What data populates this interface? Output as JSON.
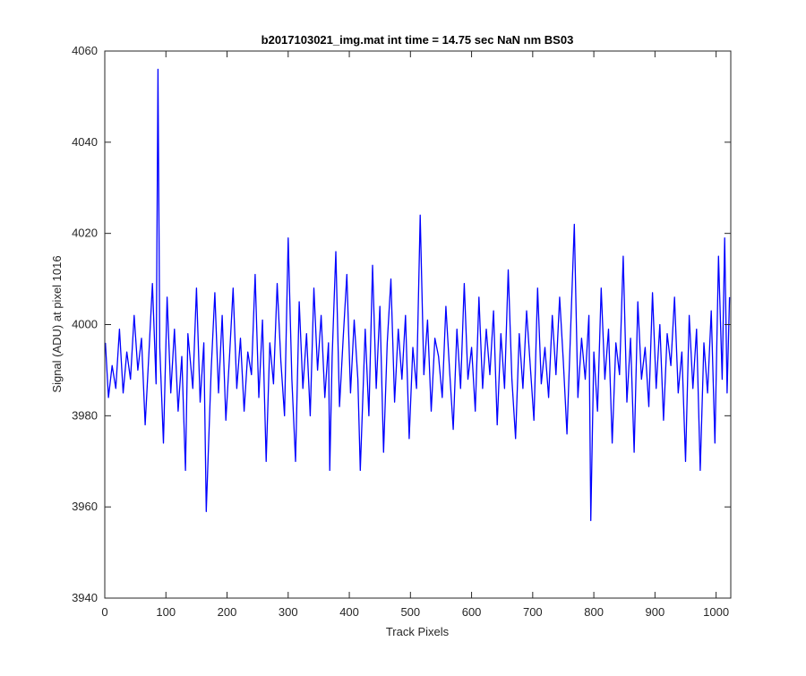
{
  "chart_data": {
    "type": "line",
    "title": "b2017103021_img.mat int time = 14.75 sec  NaN nm BS03",
    "xlabel": "Track Pixels",
    "ylabel": "Signal (ADU) at pixel 1016",
    "xlim": [
      0,
      1024
    ],
    "ylim": [
      3940,
      4060
    ],
    "xticks": [
      0,
      100,
      200,
      300,
      400,
      500,
      600,
      700,
      800,
      900,
      1000
    ],
    "yticks": [
      3940,
      3960,
      3980,
      4000,
      4020,
      4040,
      4060
    ],
    "grid": false,
    "legend": "none",
    "series": [
      {
        "color": "#0000ff",
        "x": [
          1,
          6,
          12,
          18,
          24,
          30,
          36,
          42,
          48,
          54,
          60,
          66,
          72,
          78,
          84,
          87,
          90,
          96,
          102,
          108,
          114,
          120,
          126,
          132,
          136,
          144,
          150,
          156,
          162,
          166,
          174,
          180,
          186,
          192,
          198,
          204,
          210,
          216,
          222,
          228,
          234,
          240,
          246,
          252,
          258,
          264,
          270,
          276,
          282,
          288,
          294,
          300,
          306,
          312,
          318,
          324,
          330,
          336,
          342,
          348,
          354,
          360,
          366,
          368,
          372,
          378,
          384,
          390,
          396,
          402,
          408,
          414,
          418,
          426,
          432,
          438,
          444,
          450,
          456,
          462,
          468,
          474,
          480,
          486,
          492,
          498,
          504,
          510,
          516,
          522,
          528,
          534,
          540,
          546,
          552,
          558,
          564,
          570,
          576,
          582,
          588,
          594,
          600,
          606,
          612,
          618,
          624,
          630,
          636,
          642,
          648,
          654,
          660,
          666,
          672,
          678,
          684,
          690,
          696,
          702,
          708,
          714,
          720,
          726,
          732,
          738,
          744,
          750,
          756,
          762,
          768,
          774,
          780,
          786,
          792,
          795,
          800,
          806,
          812,
          818,
          824,
          830,
          836,
          842,
          848,
          854,
          860,
          866,
          872,
          878,
          884,
          890,
          896,
          902,
          908,
          914,
          920,
          926,
          932,
          938,
          944,
          950,
          956,
          962,
          968,
          974,
          980,
          986,
          992,
          998,
          1004,
          1010,
          1014,
          1018,
          1022
        ],
        "y": [
          3996,
          3984,
          3991,
          3986,
          3999,
          3985,
          3994,
          3988,
          4002,
          3990,
          3997,
          3978,
          3993,
          4009,
          3987,
          4056,
          3995,
          3974,
          4006,
          3985,
          3999,
          3981,
          3993,
          3968,
          3998,
          3986,
          4008,
          3983,
          3996,
          3959,
          3990,
          4007,
          3985,
          4002,
          3979,
          3993,
          4008,
          3986,
          3997,
          3981,
          3994,
          3989,
          4011,
          3984,
          4001,
          3970,
          3996,
          3987,
          4009,
          3992,
          3980,
          4019,
          3988,
          3970,
          4005,
          3986,
          3998,
          3980,
          4008,
          3990,
          4002,
          3984,
          3996,
          3968,
          3993,
          4016,
          3982,
          3997,
          4011,
          3985,
          4001,
          3988,
          3968,
          3999,
          3980,
          4013,
          3986,
          4004,
          3972,
          3996,
          4010,
          3983,
          3999,
          3988,
          4002,
          3975,
          3995,
          3986,
          4024,
          3989,
          4001,
          3981,
          3997,
          3993,
          3984,
          4004,
          3990,
          3977,
          3999,
          3986,
          4009,
          3988,
          3995,
          3981,
          4006,
          3986,
          3999,
          3989,
          4003,
          3978,
          3998,
          3986,
          4012,
          3988,
          3975,
          3998,
          3986,
          4003,
          3991,
          3979,
          4008,
          3987,
          3995,
          3984,
          4002,
          3989,
          4006,
          3992,
          3976,
          3999,
          4022,
          3984,
          3997,
          3988,
          4002,
          3957,
          3994,
          3981,
          4008,
          3988,
          3999,
          3974,
          3996,
          3989,
          4015,
          3983,
          3997,
          3972,
          4005,
          3988,
          3995,
          3982,
          4007,
          3986,
          4000,
          3979,
          3998,
          3991,
          4006,
          3985,
          3994,
          3970,
          4002,
          3986,
          3999,
          3968,
          3996,
          3985,
          4003,
          3974,
          4015,
          3988,
          4019,
          3985,
          4006
        ]
      }
    ]
  }
}
